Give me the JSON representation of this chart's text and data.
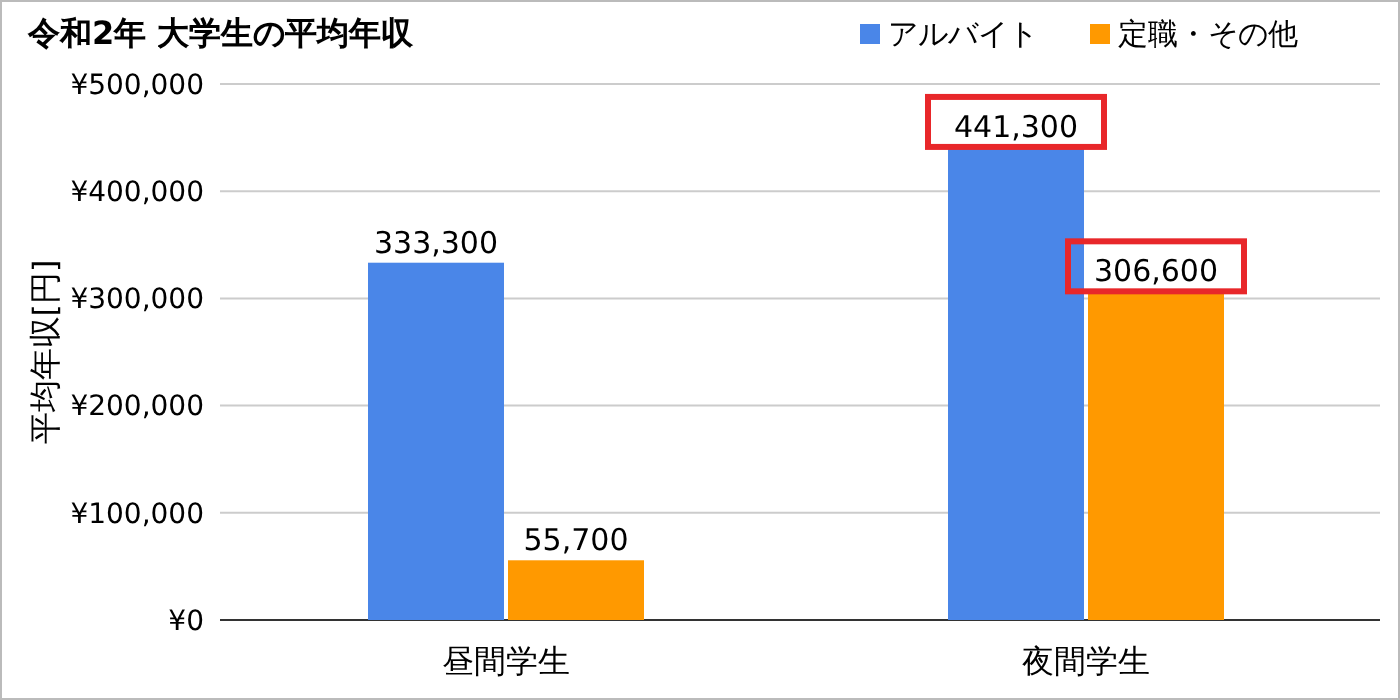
{
  "chart_data": {
    "type": "bar",
    "title": "令和2年 大学生の平均年収",
    "ylabel": "平均年収[円]",
    "categories": [
      "昼間学生",
      "夜間学生"
    ],
    "series": [
      {
        "name": "アルバイト",
        "color": "#4a86e8",
        "values": [
          333300,
          441300
        ],
        "value_labels": [
          "333,300",
          "441,300"
        ]
      },
      {
        "name": "定職・その他",
        "color": "#ff9900",
        "values": [
          55700,
          306600
        ],
        "value_labels": [
          "55,700",
          "306,600"
        ]
      }
    ],
    "ylim": [
      0,
      500000
    ],
    "yticks": [
      {
        "value": 0,
        "label": "¥0"
      },
      {
        "value": 100000,
        "label": "¥100,000"
      },
      {
        "value": 200000,
        "label": "¥200,000"
      },
      {
        "value": 300000,
        "label": "¥300,000"
      },
      {
        "value": 400000,
        "label": "¥400,000"
      },
      {
        "value": 500000,
        "label": "¥500,000"
      }
    ],
    "grid": "y",
    "legend": "top right"
  }
}
